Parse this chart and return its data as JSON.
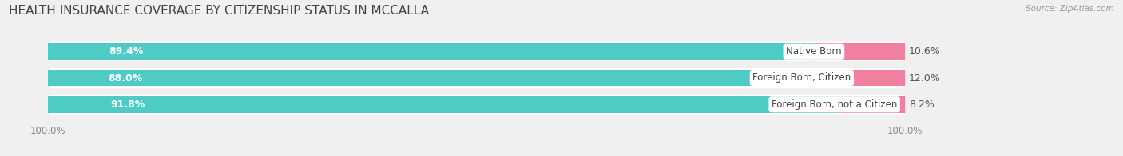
{
  "title": "HEALTH INSURANCE COVERAGE BY CITIZENSHIP STATUS IN MCCALLA",
  "source": "Source: ZipAtlas.com",
  "categories": [
    "Native Born",
    "Foreign Born, Citizen",
    "Foreign Born, not a Citizen"
  ],
  "with_coverage": [
    89.4,
    88.0,
    91.8
  ],
  "without_coverage": [
    10.6,
    12.0,
    8.2
  ],
  "color_with": "#4ECBC4",
  "color_without": "#F080A0",
  "color_bg": "#f0f0f0",
  "color_bar_bg": "#e8e8e8",
  "color_white": "#ffffff",
  "title_fontsize": 11,
  "label_fontsize": 9,
  "tick_fontsize": 8.5,
  "legend_fontsize": 9,
  "bar_height": 0.62,
  "total_width": 100.0
}
